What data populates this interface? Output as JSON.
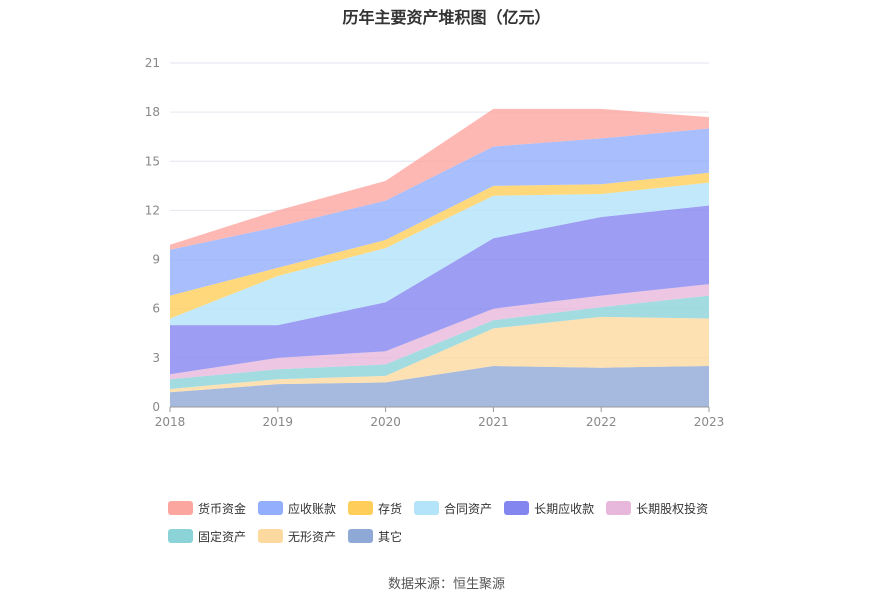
{
  "chart_data": {
    "type": "area",
    "title": "历年主要资产堆积图（亿元）",
    "categories": [
      "2018",
      "2019",
      "2020",
      "2021",
      "2022",
      "2023"
    ],
    "ylim": [
      0,
      21
    ],
    "yticks": [
      0,
      3,
      6,
      9,
      12,
      15,
      18,
      21
    ],
    "stacked": true,
    "grid": true,
    "legend_position": "bottom",
    "series": [
      {
        "name": "其它",
        "color": "#8fa9d6",
        "values": [
          0.9,
          1.4,
          1.5,
          2.5,
          2.4,
          2.5
        ]
      },
      {
        "name": "无形资产",
        "color": "#fdd9a0",
        "values": [
          0.2,
          0.3,
          0.4,
          2.3,
          3.1,
          2.9
        ]
      },
      {
        "name": "固定资产",
        "color": "#8cd3d8",
        "values": [
          0.6,
          0.6,
          0.7,
          0.5,
          0.6,
          1.4
        ]
      },
      {
        "name": "长期股权投资",
        "color": "#e8b8dc",
        "values": [
          0.3,
          0.7,
          0.8,
          0.7,
          0.7,
          0.7
        ]
      },
      {
        "name": "长期应收款",
        "color": "#8486f0",
        "values": [
          3.0,
          2.0,
          3.0,
          4.3,
          4.8,
          4.8
        ]
      },
      {
        "name": "合同资产",
        "color": "#b3e4fa",
        "values": [
          0.4,
          3.0,
          3.3,
          2.6,
          1.4,
          1.4
        ]
      },
      {
        "name": "存货",
        "color": "#ffce5a",
        "values": [
          1.4,
          0.5,
          0.5,
          0.6,
          0.6,
          0.6
        ]
      },
      {
        "name": "应收账款",
        "color": "#92aefc",
        "values": [
          2.8,
          2.5,
          2.4,
          2.4,
          2.8,
          2.7
        ]
      },
      {
        "name": "货币资金",
        "color": "#fca6a0",
        "values": [
          0.3,
          1.0,
          1.2,
          2.3,
          1.8,
          0.7
        ]
      }
    ]
  },
  "legend": {
    "row1": [
      {
        "label": "货币资金",
        "color": "#fca6a0"
      },
      {
        "label": "应收账款",
        "color": "#92aefc"
      },
      {
        "label": "存货",
        "color": "#ffce5a"
      },
      {
        "label": "合同资产",
        "color": "#b3e4fa"
      },
      {
        "label": "长期应收款",
        "color": "#8486f0"
      },
      {
        "label": "长期股权投资",
        "color": "#e8b8dc"
      }
    ],
    "row2": [
      {
        "label": "固定资产",
        "color": "#8cd3d8"
      },
      {
        "label": "无形资产",
        "color": "#fdd9a0"
      },
      {
        "label": "其它",
        "color": "#8fa9d6"
      }
    ]
  },
  "source": "数据来源：恒生聚源"
}
